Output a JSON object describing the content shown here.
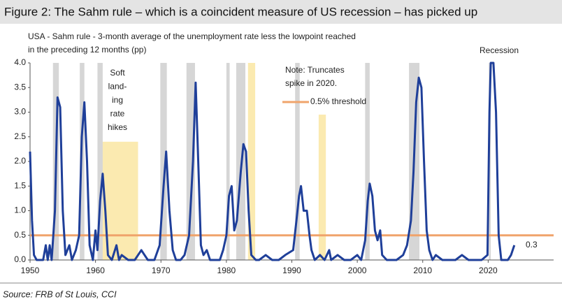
{
  "chart_data": {
    "type": "line",
    "title": "Figure 2: The Sahm rule – which is a coincident measure of US recession – has picked up",
    "subtitle": [
      "USA - Sahm rule - 3-month average of the unemployment rate less the lowpoint reached",
      "in the preceding 12 months (pp)"
    ],
    "source": "Source: FRB of St Louis, CCI",
    "xlim": [
      1950,
      2030
    ],
    "ylim": [
      0,
      4
    ],
    "xticks": [
      1950,
      1960,
      1970,
      1980,
      1990,
      2000,
      2010,
      2020
    ],
    "yticks": [
      {
        "value": 0,
        "label": "0.0"
      },
      0.5,
      {
        "value": 1,
        "label": "1.0"
      },
      1.5,
      {
        "value": 2,
        "label": "2.0"
      },
      2.5,
      {
        "value": 3,
        "label": "3.0"
      },
      3.5,
      {
        "value": 4,
        "label": "4.0"
      }
    ],
    "grid": false,
    "x": [
      1950.0,
      1950.3,
      1950.6,
      1951,
      1952,
      1952.4,
      1952.7,
      1953,
      1953.3,
      1953.8,
      1954.2,
      1954.6,
      1955,
      1955.4,
      1956,
      1956.4,
      1957,
      1957.5,
      1957.9,
      1958.3,
      1958.7,
      1959.1,
      1959.6,
      1960,
      1960.3,
      1960.7,
      1961.1,
      1961.5,
      1961.9,
      1962.5,
      1963.2,
      1963.6,
      1964,
      1965,
      1966,
      1967,
      1967.5,
      1968,
      1969,
      1969.8,
      1970.4,
      1970.8,
      1971.3,
      1971.8,
      1972.3,
      1973,
      1973.6,
      1974.3,
      1974.9,
      1975.3,
      1975.7,
      1976.1,
      1976.5,
      1977,
      1977.5,
      1978,
      1979,
      1979.5,
      1980,
      1980.4,
      1980.8,
      1981.2,
      1981.6,
      1982.2,
      1982.6,
      1983,
      1983.4,
      1983.8,
      1984.5,
      1985,
      1986,
      1987,
      1988,
      1989,
      1990.2,
      1990.7,
      1991.1,
      1991.4,
      1991.8,
      1992.3,
      1992.7,
      1993,
      1993.5,
      1994.3,
      1995,
      1995.7,
      1996,
      1997,
      1998,
      1999,
      2000,
      2000.6,
      2001.2,
      2001.6,
      2001.9,
      2002.3,
      2002.7,
      2003.1,
      2003.5,
      2003.8,
      2004.5,
      2005,
      2006,
      2007,
      2007.6,
      2008.2,
      2008.6,
      2009,
      2009.4,
      2009.8,
      2010.2,
      2010.6,
      2011,
      2011.5,
      2012,
      2013,
      2014,
      2015,
      2016,
      2017,
      2018,
      2019,
      2019.9,
      2020.2,
      2020.4,
      2020.8,
      2021.2,
      2021.6,
      2022,
      2022.5,
      2023,
      2023.5,
      2024
    ],
    "series": [
      {
        "name": "Sahm rule",
        "color": "#1f3f99",
        "values": [
          2.2,
          0.8,
          0.1,
          0,
          0,
          0.3,
          0,
          0.3,
          0,
          1.0,
          3.3,
          3.1,
          1.0,
          0.1,
          0.3,
          0,
          0.2,
          0.5,
          2.5,
          3.2,
          2.0,
          0.3,
          0,
          0.6,
          0.2,
          1.2,
          1.75,
          1.0,
          0.1,
          0,
          0.3,
          0,
          0.1,
          0,
          0,
          0.2,
          0.1,
          0,
          0,
          0.3,
          1.5,
          2.2,
          1.0,
          0.2,
          0,
          0,
          0.1,
          0.5,
          2.0,
          3.6,
          2.0,
          0.3,
          0.1,
          0.2,
          0,
          0,
          0,
          0.2,
          0.5,
          1.3,
          1.5,
          0.6,
          0.8,
          1.8,
          2.35,
          2.2,
          1.0,
          0.1,
          0,
          0,
          0.1,
          0,
          0,
          0.1,
          0.2,
          0.8,
          1.3,
          1.5,
          1.0,
          1.0,
          0.5,
          0.2,
          0,
          0.1,
          0,
          0.2,
          0,
          0.1,
          0,
          0,
          0.1,
          0,
          0.4,
          1.2,
          1.55,
          1.3,
          0.6,
          0.4,
          0.6,
          0.1,
          0,
          0,
          0,
          0.1,
          0.3,
          0.8,
          1.8,
          3.2,
          3.7,
          3.5,
          2.0,
          0.6,
          0.2,
          0,
          0.1,
          0,
          0,
          0,
          0.1,
          0,
          0,
          0,
          0.1,
          3.0,
          4.0,
          4.0,
          3.0,
          0.5,
          0,
          0,
          0,
          0.1,
          0.3
        ]
      }
    ],
    "threshold": {
      "name": "0.5% threshold",
      "value": 0.5,
      "color": "#f0a46b"
    },
    "recession_label": "Recession",
    "recession_color": "#d6d6d6",
    "recessions": [
      [
        1953.5,
        1954.4
      ],
      [
        1957.6,
        1958.3
      ],
      [
        1960.3,
        1961.1
      ],
      [
        1969.9,
        1970.9
      ],
      [
        1973.9,
        1975.2
      ],
      [
        1980.0,
        1980.5
      ],
      [
        1981.5,
        1982.9
      ],
      [
        1990.5,
        1991.2
      ],
      [
        2001.2,
        2001.9
      ],
      [
        2007.9,
        2009.5
      ],
      [
        2020.1,
        2020.4
      ]
    ],
    "soft_landing_color": "#fbeab0",
    "soft_landings": [
      {
        "start": 1960.4,
        "end": 1966.5,
        "top": 2.4
      },
      {
        "start": 1983.3,
        "end": 1984.4,
        "top": 4
      },
      {
        "start": 1994.1,
        "end": 1995.2,
        "top": 2.95
      }
    ],
    "annotations": {
      "soft_landing": [
        "Soft",
        "land-",
        "ing",
        "rate",
        "hikes"
      ],
      "note": [
        "Note: Truncates",
        "spike in 2020."
      ],
      "end_value": "0.3"
    }
  }
}
